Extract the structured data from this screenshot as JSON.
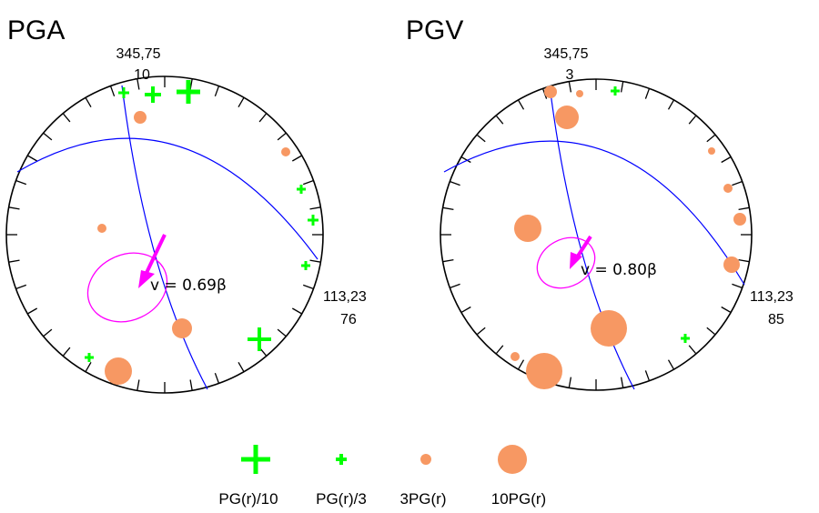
{
  "colors": {
    "circle": "#000000",
    "great_circle": "#0000ff",
    "ellipse": "#ff00ff",
    "arrow": "#ff00ff",
    "plus_marker": "#00ff00",
    "dot_marker": "#f79863"
  },
  "panels": [
    {
      "title": "PGA",
      "top_label_1": "345,75",
      "top_label_2": "10",
      "side_label_1": "113,23",
      "side_label_2": "76",
      "velocity_text": "v = 0.69β"
    },
    {
      "title": "PGV",
      "top_label_1": "345,75",
      "top_label_2": "3",
      "side_label_1": "113,23",
      "side_label_2": "85",
      "velocity_text": "v = 0.80β"
    }
  ],
  "legend": {
    "items": [
      {
        "label": "PG(r)/10",
        "icon": "large-plus-icon"
      },
      {
        "label": "PG(r)/3",
        "icon": "small-plus-icon"
      },
      {
        "label": "3PG(r)",
        "icon": "small-dot-icon"
      },
      {
        "label": "10PG(r)",
        "icon": "large-dot-icon"
      }
    ]
  }
}
